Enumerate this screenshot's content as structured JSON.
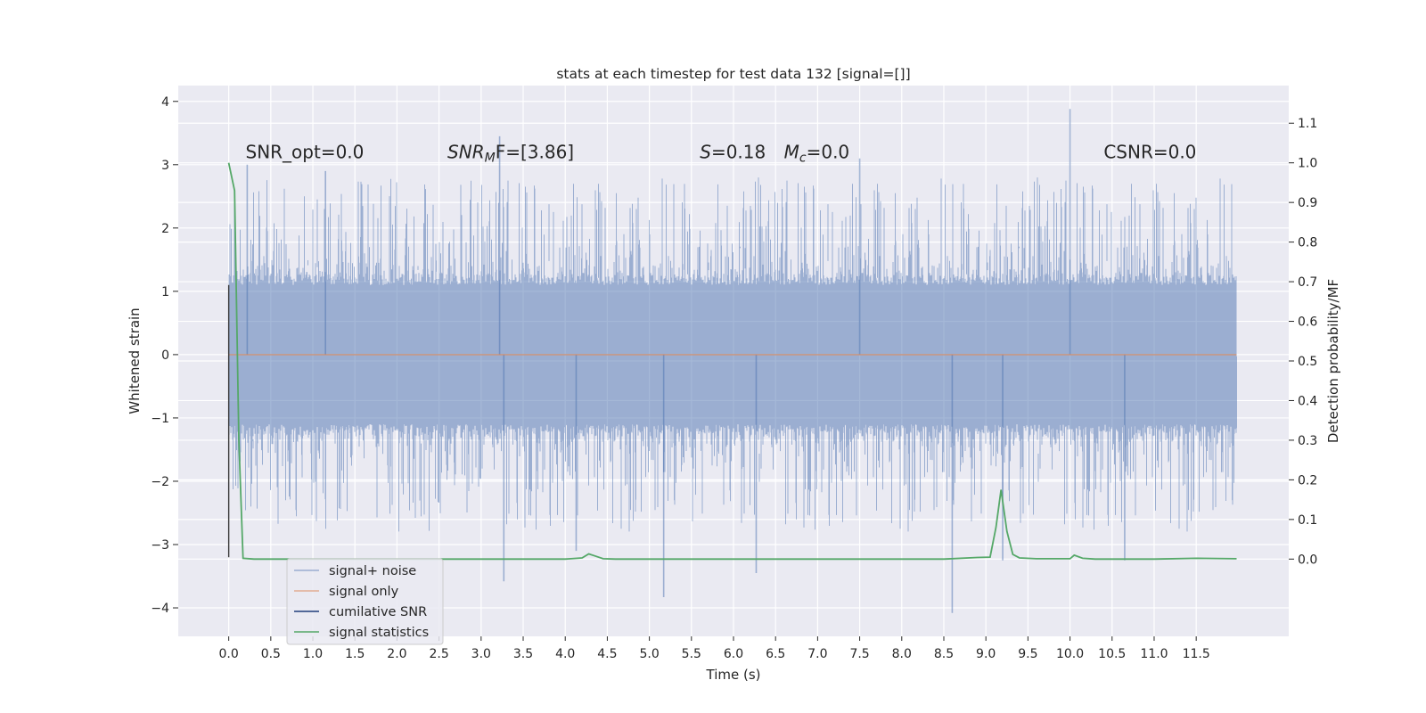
{
  "chart_data": {
    "type": "line",
    "title": "stats at each timestep for test data 132 [signal=[]]",
    "xlabel": "Time (s)",
    "ylabel": "Whitened strain",
    "y2label": "Detection probability/MF",
    "xlim": [
      -0.6,
      12.6
    ],
    "ylim": [
      -4.45,
      4.25
    ],
    "y2lim": [
      -0.195,
      1.195
    ],
    "x_ticks": [
      0.0,
      0.5,
      1.0,
      1.5,
      2.0,
      2.5,
      3.0,
      3.5,
      4.0,
      4.5,
      5.0,
      5.5,
      6.0,
      6.5,
      7.0,
      7.5,
      8.0,
      8.5,
      9.0,
      9.5,
      10.0,
      10.5,
      11.0,
      11.5
    ],
    "x_tick_labels": [
      "0.0",
      "0.5",
      "1.0",
      "1.5",
      "2.0",
      "2.5",
      "3.0",
      "3.5",
      "4.0",
      "4.5",
      "5.0",
      "5.5",
      "6.0",
      "6.5",
      "7.0",
      "7.5",
      "8.0",
      "8.5",
      "9.0",
      "9.5",
      "10.0",
      "10.5",
      "11.0",
      "11.5"
    ],
    "y_ticks": [
      4,
      3,
      2,
      1,
      0,
      -1,
      -2,
      -3,
      -4
    ],
    "y_tick_labels": [
      "4",
      "3",
      "2",
      "1",
      "0",
      "−1",
      "−2",
      "−3",
      "−4"
    ],
    "y2_ticks": [
      1.1,
      1.0,
      0.9,
      0.8,
      0.7,
      0.6,
      0.5,
      0.4,
      0.3,
      0.2,
      0.1,
      0.0
    ],
    "y2_tick_labels": [
      "1.1",
      "1.0",
      "0.9",
      "0.8",
      "0.7",
      "0.6",
      "0.5",
      "0.4",
      "0.3",
      "0.2",
      "0.1",
      "0.0"
    ],
    "grid": true,
    "legend_position": "lower-left",
    "annotations": [
      {
        "text": "SNR_opt=0.0",
        "x": 0.2,
        "y": 3.1
      },
      {
        "text": "SNR",
        "sub": "M",
        "tail": "F=[3.86]",
        "italic": true,
        "x": 2.6,
        "y": 3.1
      },
      {
        "text": "S",
        "tail": "=0.18",
        "italic": true,
        "x": 5.6,
        "y": 3.1
      },
      {
        "text": "M",
        "sub": "c",
        "tail": "=0.0",
        "italic": true,
        "x": 6.6,
        "y": 3.1
      },
      {
        "text": "CSNR=0.0",
        "x": 10.4,
        "y": 3.1
      }
    ],
    "noise": {
      "x_start": 0.0,
      "x_end": 11.98,
      "core_sigma": 0.95,
      "envelope_peaks": [
        {
          "x": 0.22,
          "y": 3.0
        },
        {
          "x": 3.27,
          "y": -3.58
        },
        {
          "x": 3.22,
          "y": 3.45
        },
        {
          "x": 5.17,
          "y": -3.83
        },
        {
          "x": 6.27,
          "y": -3.45
        },
        {
          "x": 8.6,
          "y": -4.08
        },
        {
          "x": 10.0,
          "y": 3.88
        },
        {
          "x": 10.65,
          "y": -3.25
        },
        {
          "x": 7.5,
          "y": 3.1
        },
        {
          "x": 1.15,
          "y": 2.9
        },
        {
          "x": 4.13,
          "y": -3.1
        },
        {
          "x": 9.2,
          "y": -3.25
        }
      ]
    },
    "series": [
      {
        "name": "signal+ noise",
        "color": "#4c72b0",
        "opacity": 0.5,
        "axis": "left"
      },
      {
        "name": "signal only",
        "color": "#dd8452",
        "opacity": 0.6,
        "axis": "left",
        "x": [
          0.0,
          11.98
        ],
        "y": [
          0.0,
          0.0
        ]
      },
      {
        "name": "cumilative SNR",
        "color": "#1f3d7a",
        "axis": "left",
        "x": [
          0.0,
          0.0
        ],
        "y": [
          -3.2,
          1.1
        ]
      },
      {
        "name": "signal statistics",
        "color": "#55a868",
        "axis": "right",
        "x": [
          0.0,
          0.07,
          0.12,
          0.17,
          0.3,
          0.6,
          1.0,
          2.0,
          3.0,
          4.0,
          4.2,
          4.28,
          4.35,
          4.45,
          4.6,
          5.0,
          6.0,
          7.0,
          8.0,
          8.5,
          8.9,
          9.05,
          9.12,
          9.18,
          9.25,
          9.32,
          9.4,
          9.6,
          10.0,
          10.05,
          10.15,
          10.3,
          11.0,
          11.5,
          11.98
        ],
        "y": [
          1.0,
          0.93,
          0.3,
          0.002,
          0.0,
          0.0,
          0.0,
          0.0,
          0.0,
          0.0,
          0.003,
          0.013,
          0.008,
          0.001,
          0.0,
          0.0,
          0.0,
          0.0,
          0.0,
          0.0,
          0.004,
          0.005,
          0.08,
          0.175,
          0.07,
          0.012,
          0.003,
          0.001,
          0.001,
          0.01,
          0.002,
          0.0,
          0.0,
          0.002,
          0.001
        ]
      }
    ]
  }
}
